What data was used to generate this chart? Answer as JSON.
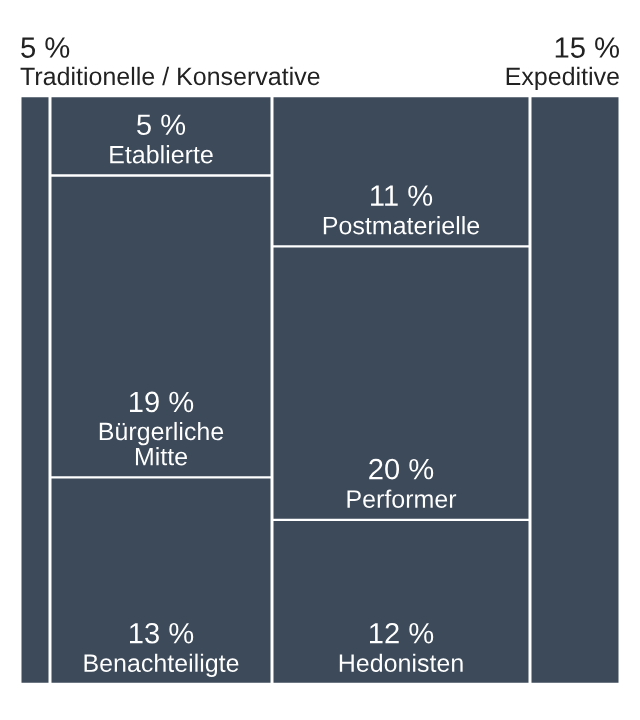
{
  "chart_data": {
    "type": "other",
    "categories": [
      "Traditionelle / Konservative",
      "Etablierte",
      "Bürgerliche\nMitte",
      "Benachteiligte",
      "Postmaterielle",
      "Performer",
      "Hedonisten",
      "Expeditive"
    ],
    "series": [
      {
        "color": "#3d4a5a",
        "values": [
          5,
          null,
          null,
          null,
          null,
          null,
          null,
          null
        ],
        "value_labels": [
          "5 %",
          null,
          null,
          null,
          null,
          null,
          null,
          null
        ]
      },
      {
        "color": "#3d4a5a",
        "values": [
          null,
          5,
          19,
          13,
          null,
          null,
          null,
          null
        ],
        "value_labels": [
          null,
          "5 %",
          "19 %",
          "13 %",
          null,
          null,
          null,
          null
        ]
      },
      {
        "color": "#3d4a5a",
        "values": [
          null,
          null,
          null,
          null,
          11,
          20,
          12,
          null
        ],
        "value_labels": [
          null,
          null,
          null,
          null,
          "11 %",
          "20 %",
          "12 %",
          null
        ]
      },
      {
        "color": "#3d4a5a",
        "values": [
          null,
          null,
          null,
          null,
          null,
          null,
          null,
          15
        ],
        "value_labels": [
          null,
          null,
          null,
          null,
          null,
          null,
          null,
          "15 %"
        ]
      }
    ]
  }
}
